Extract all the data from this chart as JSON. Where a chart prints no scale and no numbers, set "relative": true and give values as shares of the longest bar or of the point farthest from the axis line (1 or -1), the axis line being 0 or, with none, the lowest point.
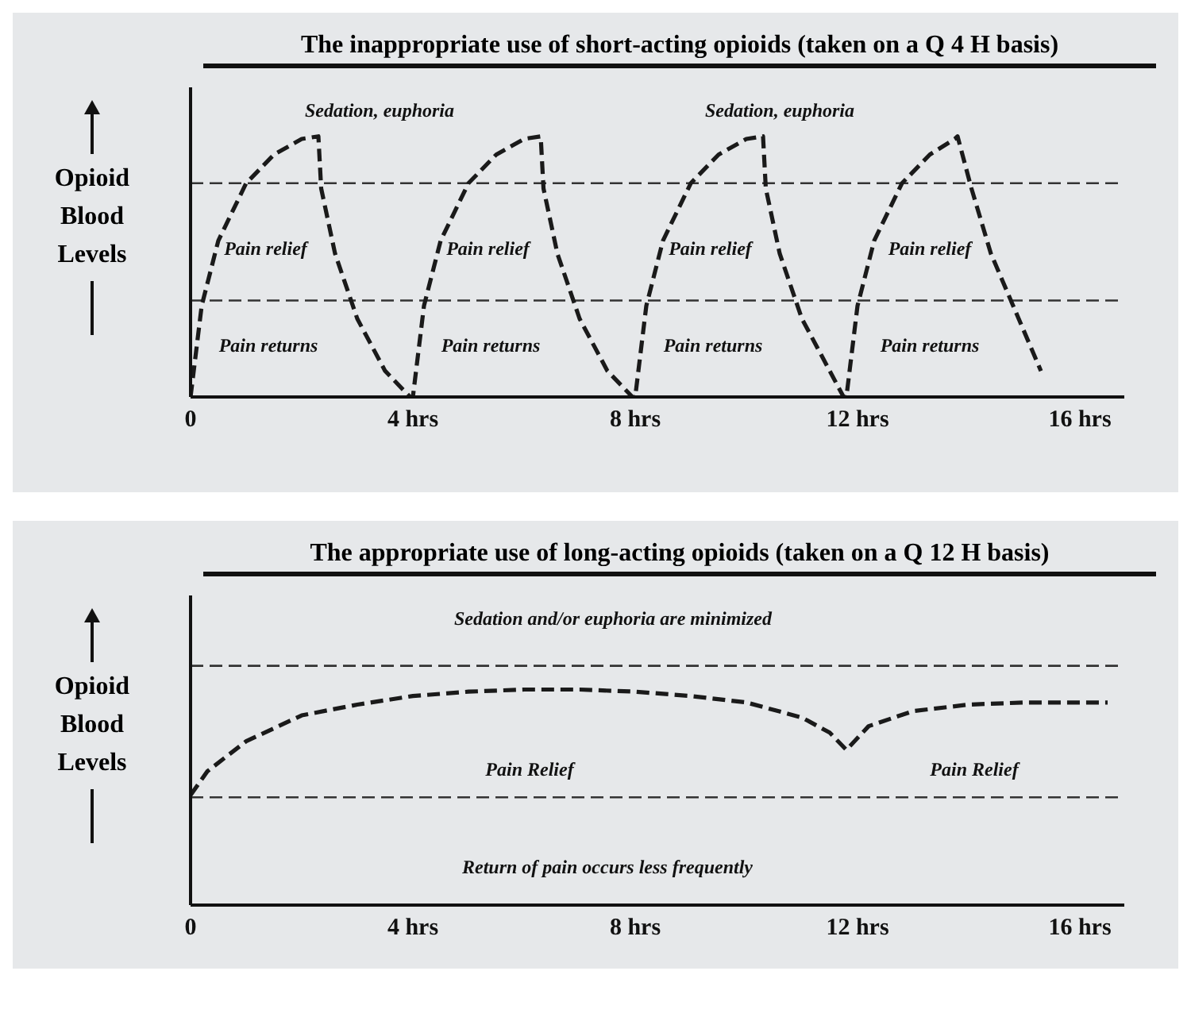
{
  "chart_data": [
    {
      "type": "line",
      "title": "The inappropriate use of short-acting opioids (taken on a Q 4 H basis)",
      "ylabel": "Opioid Blood Levels",
      "relative": true,
      "grid": false,
      "marker": "none",
      "line_style": "dashed",
      "xlim": [
        0,
        16.8
      ],
      "xticks": [
        0,
        {
          "value": 4,
          "label": "4 hrs"
        },
        {
          "value": 8,
          "label": "8 hrs"
        },
        {
          "value": 12,
          "label": "12 hrs"
        },
        {
          "value": 16,
          "label": "16 hrs"
        }
      ],
      "series": [
        {
          "color": "#1a1a1a",
          "x": [
            0,
            0.2,
            0.5,
            1.0,
            1.5,
            2.0,
            2.3,
            2.35,
            2.6,
            3.0,
            3.5,
            3.95,
            4.0,
            4.2,
            4.5,
            5.0,
            5.5,
            6.0,
            6.3,
            6.35,
            6.6,
            7.0,
            7.5,
            7.95,
            8.0,
            8.2,
            8.5,
            9.0,
            9.5,
            10.0,
            10.3,
            10.35,
            10.6,
            11.0,
            11.5,
            11.75,
            11.8,
            12.0,
            12.3,
            12.8,
            13.3,
            13.75,
            13.8,
            14.05,
            14.4,
            14.9,
            15.3
          ],
          "values": [
            0,
            0.35,
            0.6,
            0.82,
            0.93,
            0.99,
            1.0,
            0.8,
            0.55,
            0.3,
            0.1,
            0,
            0,
            0.35,
            0.6,
            0.82,
            0.93,
            0.99,
            1.0,
            0.8,
            0.55,
            0.3,
            0.1,
            0,
            0,
            0.35,
            0.6,
            0.82,
            0.93,
            0.99,
            1.0,
            0.8,
            0.55,
            0.3,
            0.1,
            0,
            0,
            0.35,
            0.6,
            0.82,
            0.93,
            0.99,
            1.0,
            0.8,
            0.55,
            0.3,
            0.1
          ]
        }
      ],
      "ref_lines": [
        {
          "axis": "y",
          "value": 0.82,
          "line_style": "dashed",
          "color": "#333333"
        },
        {
          "axis": "y",
          "value": 0.37,
          "line_style": "dashed",
          "color": "#333333"
        }
      ],
      "annotations": [
        "Sedation, euphoria",
        "Sedation, euphoria",
        "Pain relief",
        "Pain relief",
        "Pain relief",
        "Pain relief",
        "Pain returns",
        "Pain returns",
        "Pain returns",
        "Pain returns"
      ]
    },
    {
      "type": "line",
      "title": "The appropriate use of long-acting opioids (taken on a Q 12 H basis)",
      "ylabel": "Opioid Blood Levels",
      "relative": true,
      "grid": false,
      "marker": "none",
      "line_style": "dashed",
      "xlim": [
        0,
        16.8
      ],
      "xticks": [
        0,
        {
          "value": 4,
          "label": "4 hrs"
        },
        {
          "value": 8,
          "label": "8 hrs"
        },
        {
          "value": 12,
          "label": "12 hrs"
        },
        {
          "value": 16,
          "label": "16 hrs"
        }
      ],
      "series": [
        {
          "color": "#1a1a1a",
          "x": [
            0,
            0.3,
            1,
            2,
            3,
            4,
            5,
            6,
            7,
            8,
            9,
            10,
            11,
            11.5,
            11.8,
            12.2,
            13,
            14,
            15,
            16.5
          ],
          "values": [
            0.51,
            0.62,
            0.76,
            0.88,
            0.93,
            0.97,
            0.99,
            1.0,
            1.0,
            0.99,
            0.97,
            0.94,
            0.87,
            0.8,
            0.72,
            0.83,
            0.9,
            0.93,
            0.94,
            0.94
          ]
        }
      ],
      "ref_lines": [
        {
          "axis": "y",
          "value": 1.11,
          "line_style": "dashed",
          "color": "#333333"
        },
        {
          "axis": "y",
          "value": 0.5,
          "line_style": "dashed",
          "color": "#333333"
        }
      ],
      "annotations": [
        "Sedation and/or euphoria are minimized",
        "Pain Relief",
        "Pain Relief",
        "Return of pain occurs less frequently"
      ]
    }
  ]
}
